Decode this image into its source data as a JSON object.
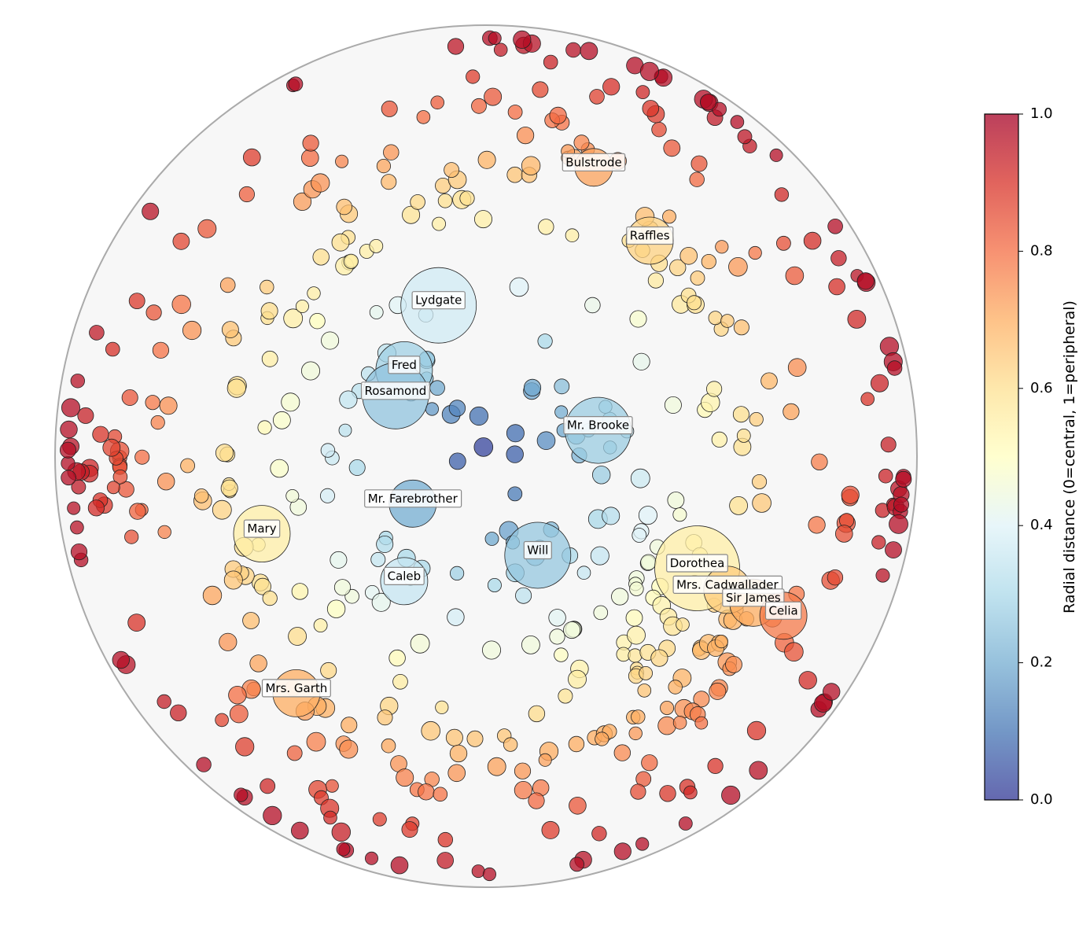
{
  "chart_data": {
    "type": "scatter",
    "coordinate_system": "polar-disk (unit radius)",
    "colormap": "RdYlBu_r",
    "colorbar": {
      "label": "Radial distance (0=central, 1=peripheral)",
      "range": [
        0,
        1
      ],
      "ticks": [
        "0.0",
        "0.2",
        "0.4",
        "0.6",
        "0.8",
        "1.0"
      ]
    },
    "labeled_characters": [
      {
        "name": "Bulstrode",
        "x": 0.25,
        "y": 0.67,
        "r": 0.72,
        "size": 2
      },
      {
        "name": "Raffles",
        "x": 0.38,
        "y": 0.5,
        "r": 0.63,
        "size": 3
      },
      {
        "name": "Lydgate",
        "x": -0.11,
        "y": 0.35,
        "r": 0.37,
        "size": 6
      },
      {
        "name": "Fred",
        "x": -0.19,
        "y": 0.2,
        "r": 0.28,
        "size": 4
      },
      {
        "name": "Rosamond",
        "x": -0.21,
        "y": 0.14,
        "r": 0.25,
        "size": 5
      },
      {
        "name": "Mr. Brooke",
        "x": 0.26,
        "y": 0.06,
        "r": 0.27,
        "size": 5
      },
      {
        "name": "Mr. Farebrother",
        "x": -0.17,
        "y": -0.11,
        "r": 0.2,
        "size": 3
      },
      {
        "name": "Mary",
        "x": -0.52,
        "y": -0.18,
        "r": 0.55,
        "size": 4
      },
      {
        "name": "Will",
        "x": 0.12,
        "y": -0.23,
        "r": 0.26,
        "size": 5
      },
      {
        "name": "Caleb",
        "x": -0.19,
        "y": -0.29,
        "r": 0.35,
        "size": 3
      },
      {
        "name": "Dorothea",
        "x": 0.49,
        "y": -0.26,
        "r": 0.55,
        "size": 7
      },
      {
        "name": "Mrs. Cadwallader",
        "x": 0.56,
        "y": -0.31,
        "r": 0.64,
        "size": 3
      },
      {
        "name": "Sir James",
        "x": 0.62,
        "y": -0.34,
        "r": 0.7,
        "size": 3
      },
      {
        "name": "Celia",
        "x": 0.69,
        "y": -0.37,
        "r": 0.78,
        "size": 3
      },
      {
        "name": "Mrs. Garth",
        "x": -0.44,
        "y": -0.55,
        "r": 0.7,
        "size": 3
      }
    ],
    "clusters": [
      {
        "cx": 0.43,
        "cy": -0.42,
        "n": 60,
        "spread": 0.12,
        "minR": 0.45
      },
      {
        "cx": -0.25,
        "cy": 0.6,
        "n": 40,
        "spread": 0.22,
        "minR": 0.55
      },
      {
        "cx": 0.2,
        "cy": 0.72,
        "n": 30,
        "spread": 0.2,
        "minR": 0.6
      },
      {
        "cx": -0.62,
        "cy": 0.35,
        "n": 25,
        "spread": 0.2,
        "minR": 0.6
      },
      {
        "cx": -0.7,
        "cy": -0.1,
        "n": 30,
        "spread": 0.18,
        "minR": 0.6
      },
      {
        "cx": -0.55,
        "cy": -0.5,
        "n": 20,
        "spread": 0.15,
        "minR": 0.6
      },
      {
        "cx": 0.35,
        "cy": -0.78,
        "n": 25,
        "spread": 0.15,
        "minR": 0.7
      },
      {
        "cx": -0.15,
        "cy": -0.78,
        "n": 25,
        "spread": 0.2,
        "minR": 0.65
      },
      {
        "cx": 0.75,
        "cy": 0.25,
        "n": 25,
        "spread": 0.2,
        "minR": 0.6
      },
      {
        "cx": 0.45,
        "cy": 0.75,
        "n": 20,
        "spread": 0.2,
        "minR": 0.75
      },
      {
        "cx": -0.2,
        "cy": 0.2,
        "n": 25,
        "spread": 0.13,
        "minR": 0.0
      },
      {
        "cx": 0.2,
        "cy": 0.02,
        "n": 18,
        "spread": 0.12,
        "minR": 0.0
      },
      {
        "cx": 0.1,
        "cy": -0.22,
        "n": 14,
        "spread": 0.12,
        "minR": 0.0
      },
      {
        "cx": -0.25,
        "cy": -0.3,
        "n": 22,
        "spread": 0.2,
        "minR": 0.3
      },
      {
        "cx": 0.45,
        "cy": 0.1,
        "n": 18,
        "spread": 0.2,
        "minR": 0.4
      },
      {
        "cx": -0.4,
        "cy": 0.0,
        "n": 18,
        "spread": 0.2,
        "minR": 0.3
      },
      {
        "cx": 0.9,
        "cy": -0.15,
        "n": 22,
        "spread": 0.08,
        "minR": 0.85
      },
      {
        "cx": -0.9,
        "cy": 0.0,
        "n": 18,
        "spread": 0.08,
        "minR": 0.85
      },
      {
        "cx": 0.55,
        "cy": 0.3,
        "n": 15,
        "spread": 0.15,
        "minR": 0.45
      },
      {
        "cx": 0.15,
        "cy": -0.55,
        "n": 18,
        "spread": 0.18,
        "minR": 0.45
      },
      {
        "cx": -0.35,
        "cy": -0.75,
        "n": 15,
        "spread": 0.12,
        "minR": 0.7
      },
      {
        "cx": 0.0,
        "cy": 0.9,
        "n": 10,
        "spread": 0.12,
        "minR": 0.8
      },
      {
        "cx": 0.7,
        "cy": -0.6,
        "n": 10,
        "spread": 0.12,
        "minR": 0.75
      }
    ],
    "xlim": [
      -1,
      1
    ],
    "ylim": [
      -1,
      1
    ],
    "grid": false
  }
}
